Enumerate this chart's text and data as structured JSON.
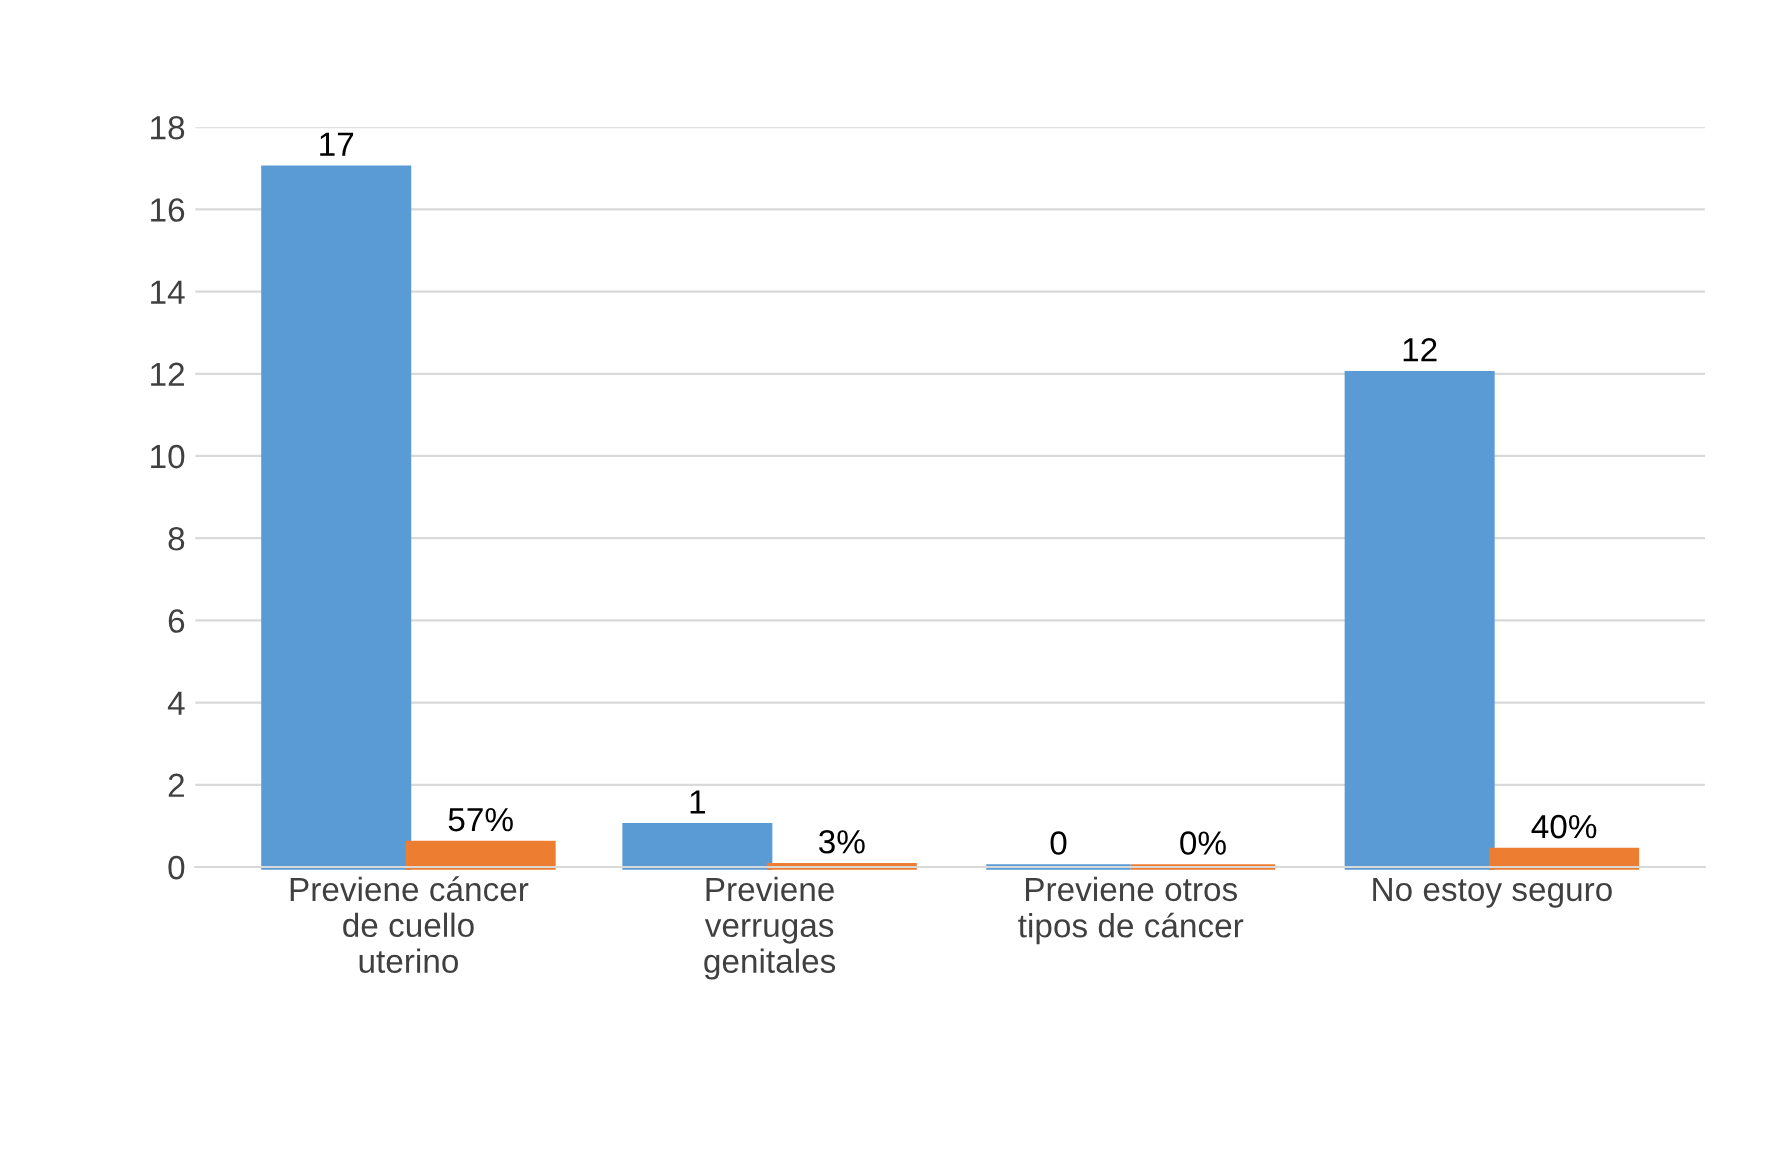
{
  "chart_data": {
    "type": "bar",
    "categories": [
      "Previene cáncer\nde cuello\nuterino",
      "Previene\nverrugas\ngenitales",
      "Previene otros\ntipos de cáncer",
      "No estoy seguro"
    ],
    "series": [
      {
        "color": "#5b9bd5",
        "values": [
          17,
          1,
          0,
          12
        ],
        "value_labels": [
          "17",
          "1",
          "0",
          "12"
        ]
      },
      {
        "color": "#ed7d31",
        "values": [
          0.57,
          0.03,
          0,
          0.4
        ],
        "value_labels": [
          "57%",
          "3%",
          "0%",
          "40%"
        ]
      }
    ],
    "ylim": [
      0,
      18
    ],
    "yticks": [
      0,
      2,
      4,
      6,
      8,
      10,
      12,
      14,
      16,
      18
    ],
    "grid": "y",
    "legend": false
  }
}
